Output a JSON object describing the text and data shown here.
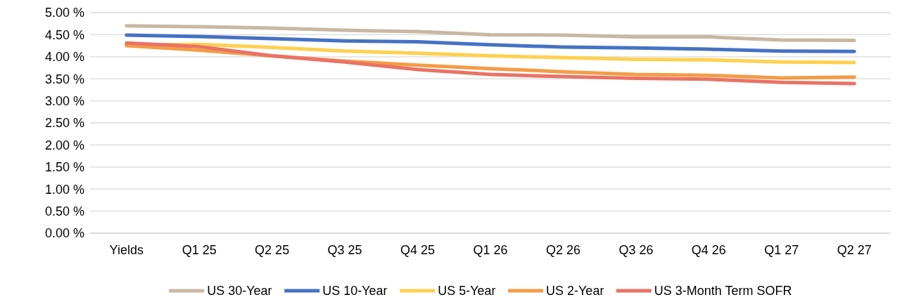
{
  "chart_data": {
    "type": "line",
    "categories": [
      "Yields",
      "Q1 25",
      "Q2 25",
      "Q3 25",
      "Q4 25",
      "Q1 26",
      "Q2 26",
      "Q3 26",
      "Q4 26",
      "Q1 27",
      "Q2 27"
    ],
    "series": [
      {
        "name": "US 30-Year",
        "color": "#c8b8a2",
        "values": [
          4.7,
          4.68,
          4.65,
          4.6,
          4.57,
          4.5,
          4.49,
          4.45,
          4.45,
          4.38,
          4.37
        ]
      },
      {
        "name": "US 10-Year",
        "color": "#4472c4",
        "values": [
          4.49,
          4.46,
          4.41,
          4.36,
          4.34,
          4.27,
          4.22,
          4.2,
          4.17,
          4.13,
          4.12
        ]
      },
      {
        "name": "US 5-Year",
        "color": "#ffd04e",
        "values": [
          4.27,
          4.28,
          4.21,
          4.13,
          4.08,
          4.02,
          3.98,
          3.94,
          3.93,
          3.88,
          3.87
        ]
      },
      {
        "name": "US 2-Year",
        "color": "#f39c45",
        "values": [
          4.25,
          4.15,
          4.02,
          3.9,
          3.81,
          3.73,
          3.66,
          3.6,
          3.58,
          3.52,
          3.54
        ]
      },
      {
        "name": "US 3-Month Term SOFR",
        "color": "#e97365",
        "values": [
          4.31,
          4.23,
          4.02,
          3.88,
          3.71,
          3.6,
          3.55,
          3.51,
          3.49,
          3.42,
          3.39
        ]
      }
    ],
    "ylim": [
      0,
      5
    ],
    "yticks": [
      {
        "value": 0,
        "label": "0.00 %"
      },
      {
        "value": 0.5,
        "label": "0.50 %"
      },
      {
        "value": 1,
        "label": "1.00 %"
      },
      {
        "value": 1.5,
        "label": "1.50 %"
      },
      {
        "value": 2,
        "label": "2.00 %"
      },
      {
        "value": 2.5,
        "label": "2.50 %"
      },
      {
        "value": 3,
        "label": "3.00 %"
      },
      {
        "value": 3.5,
        "label": "3.50 %"
      },
      {
        "value": 4,
        "label": "4.00 %"
      },
      {
        "value": 4.5,
        "label": "4.50 %"
      },
      {
        "value": 5,
        "label": "5.00 %"
      }
    ],
    "grid": "y",
    "legend": "bottom",
    "line_style": "solid",
    "marker": "none"
  }
}
